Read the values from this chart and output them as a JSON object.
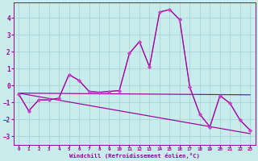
{
  "background_color": "#c8ecec",
  "grid_color": "#aad4d4",
  "line_color": "#990099",
  "xlabel": "Windchill (Refroidissement éolien,°C)",
  "xlim": [
    -0.5,
    23.5
  ],
  "ylim": [
    -3.5,
    4.9
  ],
  "yticks": [
    -3,
    -2,
    -1,
    0,
    1,
    2,
    3,
    4
  ],
  "xticks": [
    0,
    1,
    2,
    3,
    4,
    5,
    6,
    7,
    8,
    9,
    10,
    11,
    12,
    13,
    14,
    15,
    16,
    17,
    18,
    19,
    20,
    21,
    22,
    23
  ],
  "series_main": {
    "x": [
      0,
      1,
      2,
      3,
      4,
      5,
      6,
      7,
      8,
      9,
      10,
      11,
      12,
      13,
      14,
      15,
      16,
      17,
      18,
      19,
      20,
      21,
      22,
      23
    ],
    "y": [
      -0.5,
      -1.5,
      -0.85,
      -0.85,
      -0.75,
      0.65,
      0.3,
      -0.35,
      -0.4,
      -0.35,
      -0.3,
      1.9,
      2.6,
      1.1,
      4.35,
      4.5,
      3.9,
      -0.1,
      -1.7,
      -2.45,
      -0.6,
      -1.05,
      -2.05,
      -2.65
    ]
  },
  "series_smooth": {
    "x": [
      0,
      1,
      2,
      3,
      4,
      5,
      6,
      7,
      8,
      9,
      10,
      11,
      12,
      13,
      14,
      15,
      16,
      17,
      18,
      19,
      20,
      21,
      22,
      23
    ],
    "y": [
      -0.5,
      -1.5,
      -0.85,
      -0.85,
      -0.75,
      0.65,
      0.3,
      -0.35,
      -0.4,
      -0.35,
      -0.3,
      1.9,
      2.6,
      1.1,
      4.35,
      4.5,
      3.9,
      -0.1,
      -1.7,
      -2.45,
      -0.6,
      -1.05,
      -2.05,
      -2.65
    ]
  },
  "trend1": {
    "x": [
      0,
      23
    ],
    "y": [
      -0.45,
      -0.55
    ]
  },
  "trend2": {
    "x": [
      0,
      23
    ],
    "y": [
      -0.45,
      -2.85
    ]
  }
}
